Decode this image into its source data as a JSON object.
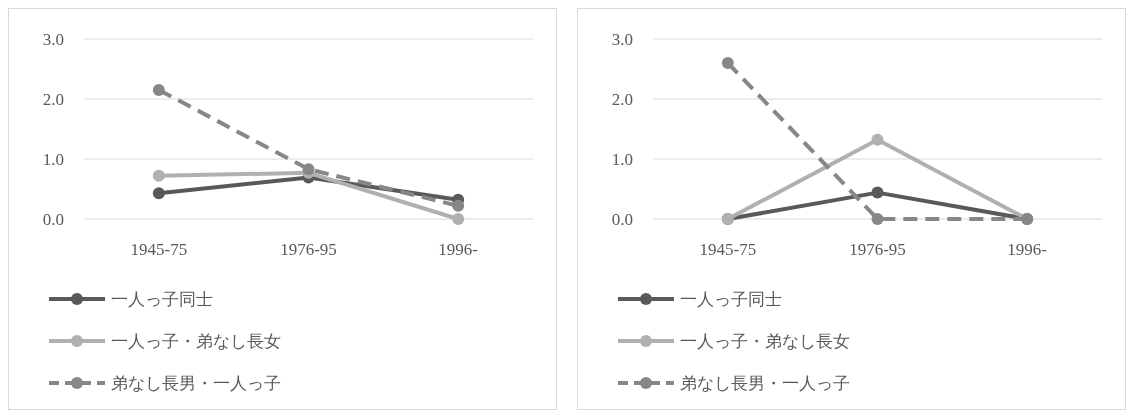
{
  "chart_data": [
    {
      "type": "line",
      "categories": [
        "1945-75",
        "1976-95",
        "1996-"
      ],
      "ylim": [
        0,
        3
      ],
      "yticks": [
        {
          "value": 0,
          "label": "0.0"
        },
        {
          "value": 1,
          "label": "1.0"
        },
        {
          "value": 2,
          "label": "2.0"
        },
        {
          "value": 3,
          "label": "3.0"
        }
      ],
      "grid": "y",
      "legend": "bottom",
      "marker": "circle",
      "series": [
        {
          "name": "一人っ子同士",
          "color": "#595959",
          "line_style": "solid",
          "values": [
            0.43,
            0.69,
            0.32
          ]
        },
        {
          "name": "一人っ子・弟なし長女",
          "color": "#b0b0b0",
          "line_style": "solid",
          "values": [
            0.72,
            0.77,
            0.0
          ]
        },
        {
          "name": "弟なし長男・一人っ子",
          "color": "#878787",
          "line_style": "dashed",
          "values": [
            2.15,
            0.83,
            0.22
          ]
        }
      ]
    },
    {
      "type": "line",
      "categories": [
        "1945-75",
        "1976-95",
        "1996-"
      ],
      "ylim": [
        0,
        3
      ],
      "yticks": [
        {
          "value": 0,
          "label": "0.0"
        },
        {
          "value": 1,
          "label": "1.0"
        },
        {
          "value": 2,
          "label": "2.0"
        },
        {
          "value": 3,
          "label": "3.0"
        }
      ],
      "grid": "y",
      "legend": "bottom",
      "marker": "circle",
      "series": [
        {
          "name": "一人っ子同士",
          "color": "#595959",
          "line_style": "solid",
          "values": [
            0.0,
            0.44,
            0.0
          ]
        },
        {
          "name": "一人っ子・弟なし長女",
          "color": "#b0b0b0",
          "line_style": "solid",
          "values": [
            0.0,
            1.32,
            0.0
          ]
        },
        {
          "name": "弟なし長男・一人っ子",
          "color": "#878787",
          "line_style": "dashed",
          "values": [
            2.6,
            0.0,
            0.0
          ]
        }
      ]
    }
  ]
}
